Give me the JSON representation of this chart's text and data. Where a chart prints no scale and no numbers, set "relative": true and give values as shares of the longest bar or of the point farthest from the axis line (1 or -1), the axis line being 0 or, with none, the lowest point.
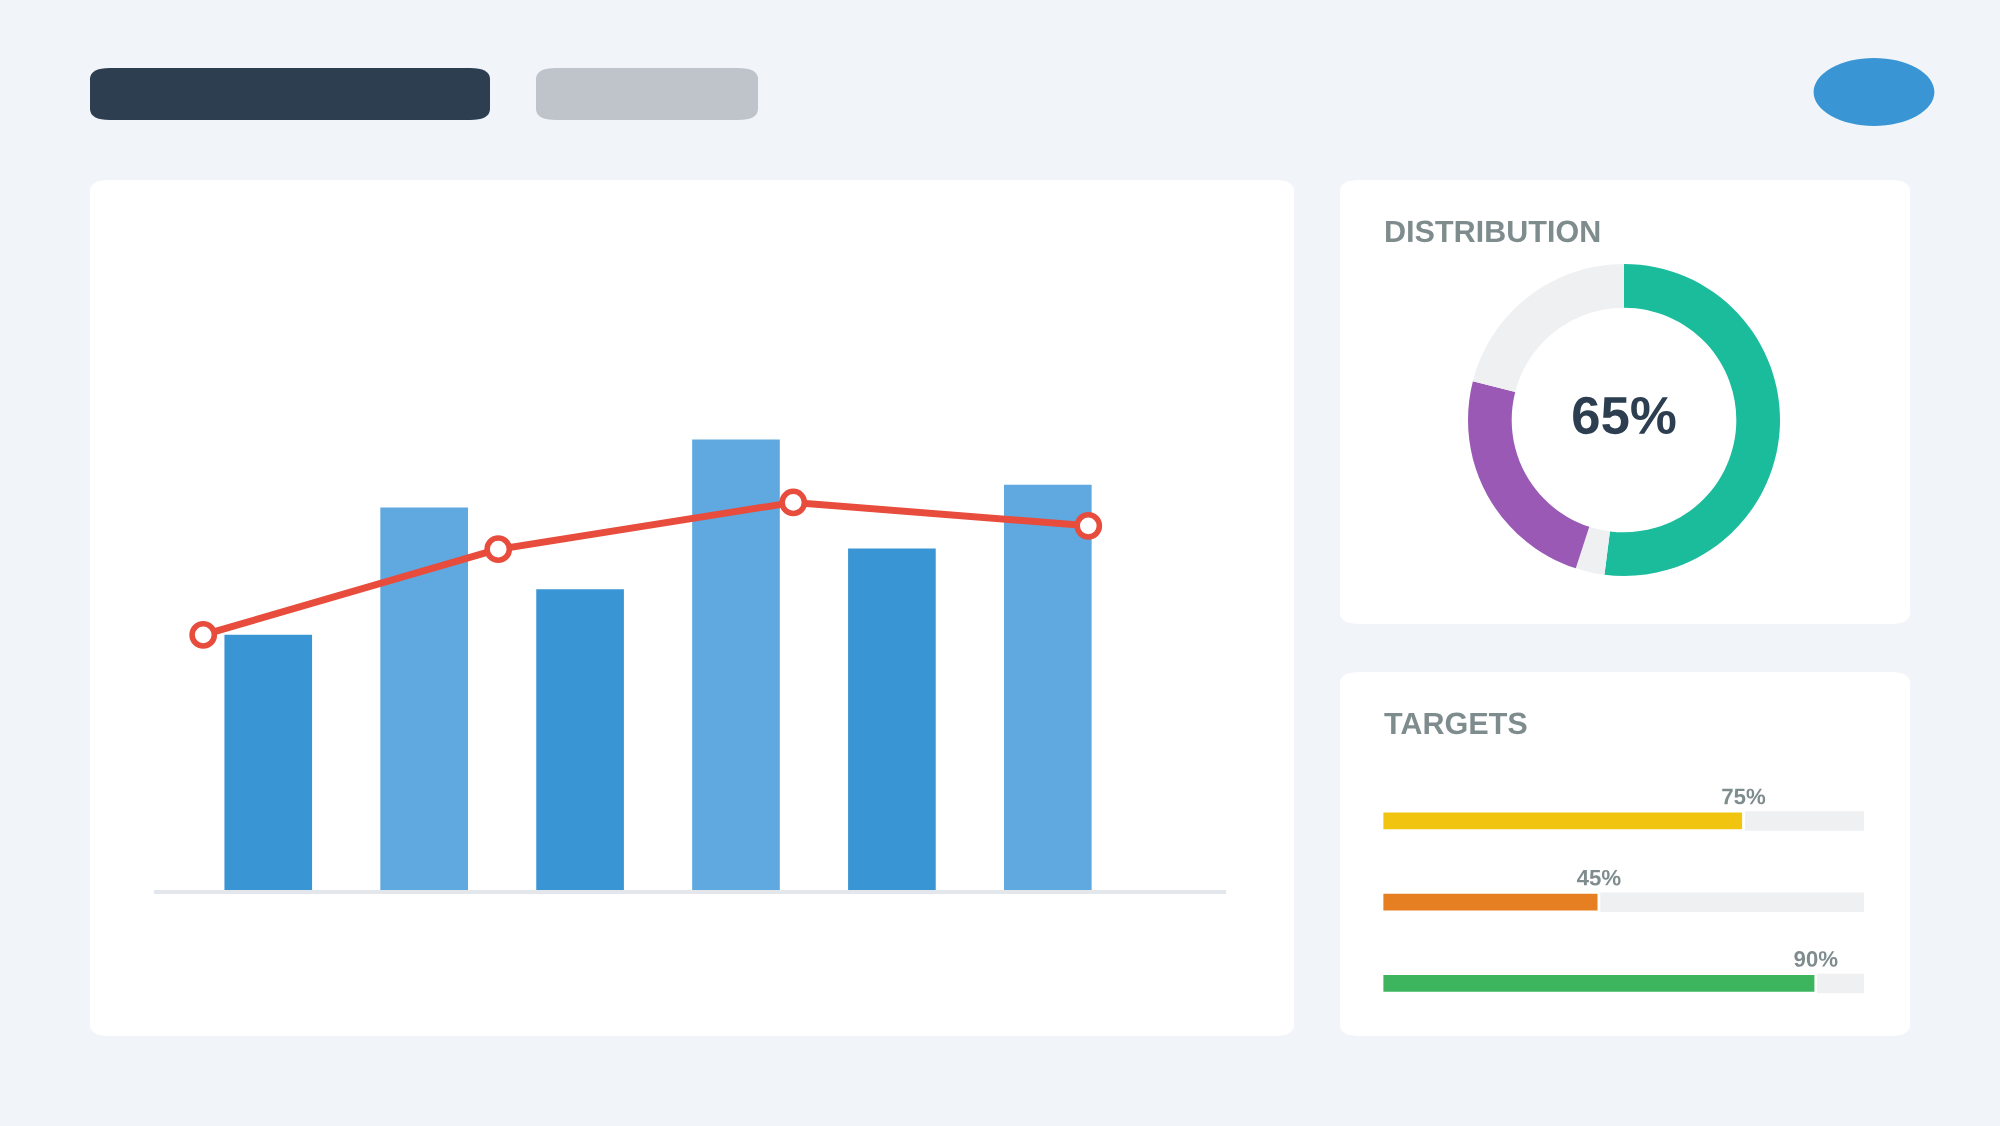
{
  "chart_data": [
    {
      "type": "bar",
      "relative": true,
      "tick_labels": false,
      "categories": [
        null,
        null,
        null,
        null,
        null,
        null
      ],
      "series": [
        {
          "colors": [
            "#3a95d4",
            "#5fa9e0",
            "#3a95d4",
            "#5fa9e0",
            "#3a95d4",
            "#5fa9e0"
          ],
          "values": [
            0.57,
            0.85,
            0.67,
            1.0,
            0.76,
            0.9
          ]
        }
      ]
    },
    {
      "type": "line",
      "relative": true,
      "tick_labels": false,
      "categories": [
        null,
        null,
        null,
        null
      ],
      "marker": "circle",
      "series": [
        {
          "color": "#e74c3c",
          "values": [
            0.66,
            0.88,
            1.0,
            0.94
          ]
        }
      ]
    },
    {
      "type": "donut",
      "title": "DISTRIBUTION",
      "annotations": [
        "65%"
      ],
      "categories": [
        null,
        null,
        null,
        null
      ],
      "values": [
        52,
        3,
        24,
        21
      ],
      "colors": [
        "#1abc9c",
        "#eef0f2",
        "#9b59b6",
        "#eef0f2"
      ]
    },
    {
      "type": "bar",
      "orientation": "horizontal",
      "title": "TARGETS",
      "categories": [
        null,
        null,
        null
      ],
      "values": [
        75,
        45,
        90
      ],
      "value_labels": [
        "75%",
        "45%",
        "90%"
      ],
      "colors": [
        "#f1c40f",
        "#e67e22",
        "#3cb55e"
      ],
      "xlim": [
        0,
        100
      ]
    }
  ]
}
